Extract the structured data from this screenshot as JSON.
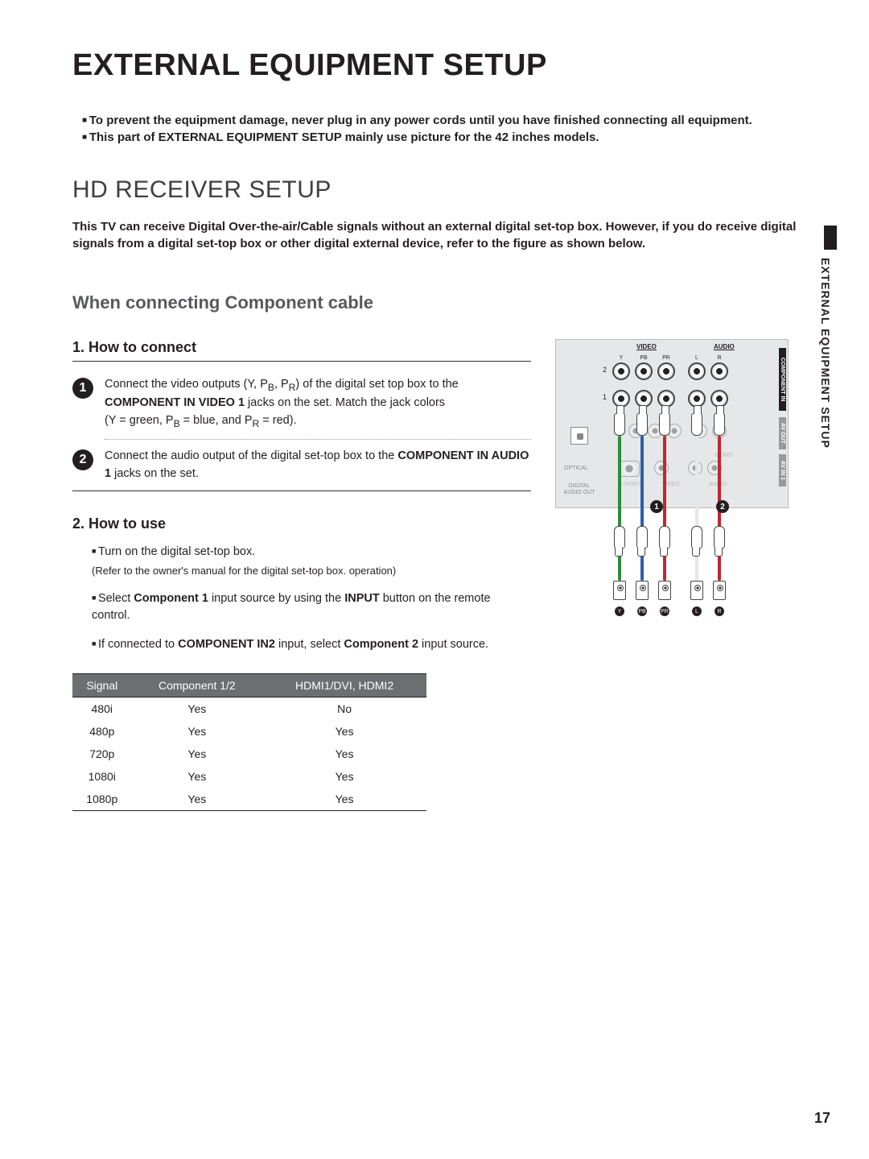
{
  "page": {
    "title": "EXTERNAL EQUIPMENT SETUP",
    "section_title": "HD RECEIVER SETUP",
    "side_text": "EXTERNAL EQUIPMENT SETUP",
    "page_number": "17"
  },
  "warnings": [
    "To prevent the equipment damage, never plug in any power cords until you have finished connecting all equipment.",
    "This part of EXTERNAL EQUIPMENT SETUP mainly use picture for the 42 inches models."
  ],
  "intro": "This TV can receive Digital Over-the-air/Cable signals without an external digital set-top box. However, if you do receive digital signals from a digital set-top box or other digital external device, refer to the figure as shown below.",
  "sub_title": "When connecting Component cable",
  "how_to_connect": {
    "title": "1. How to connect",
    "steps": [
      {
        "num": "1",
        "html": "Connect the video outputs (Y, P<sub>B</sub>, P<sub>R</sub>) of the digital set top box to the <b>COMPONENT IN VIDEO 1</b> jacks on the set. Match the jack colors<br>(Y = green, P<sub>B</sub> = blue, and P<sub>R</sub> = red)."
      },
      {
        "num": "2",
        "html": "Connect the audio output of the digital set-top box to the <b>COMPONENT IN AUDIO 1</b> jacks on the set."
      }
    ]
  },
  "how_to_use": {
    "title": "2. How to use",
    "items": [
      {
        "html": "Turn on the digital set-top box.",
        "refer": "(Refer to the owner's manual for the digital set-top box. operation)"
      },
      {
        "html": "Select <b>Component 1</b> input source by using the <b>INPUT</b> button on the remote control."
      },
      {
        "html": "If connected to <b>COMPONENT IN2</b> input, select <b>Component 2</b> input source."
      }
    ]
  },
  "table": {
    "columns": [
      "Signal",
      "Component 1/2",
      "HDMI1/DVI, HDMI2"
    ],
    "rows": [
      [
        "480i",
        "Yes",
        "No"
      ],
      [
        "480p",
        "Yes",
        "Yes"
      ],
      [
        "720p",
        "Yes",
        "Yes"
      ],
      [
        "1080i",
        "Yes",
        "Yes"
      ],
      [
        "1080p",
        "Yes",
        "Yes"
      ]
    ],
    "header_bg": "#6d6e71",
    "header_color": "#ffffff"
  },
  "diagram": {
    "panel_labels": {
      "video": "VIDEO",
      "audio": "AUDIO"
    },
    "jack_labels_top": [
      "Y",
      "PB",
      "PR",
      "L",
      "R"
    ],
    "row_nums": [
      "2",
      "1"
    ],
    "vlabels": {
      "component": "COMPONENT IN",
      "avout": "AV OUT",
      "avin": "AV IN 1"
    },
    "optical": "OPTICAL",
    "digital_audio": "DIGITAL AUDIO OUT",
    "svideo": "S-VIDEO",
    "video_lbl": "VIDEO",
    "audio_lbl": "AUDIO",
    "mono": "MONO",
    "cable_colors": [
      "#2e8b3d",
      "#2a5fb0",
      "#c1272d",
      "#e6e6e6",
      "#c1272d"
    ],
    "badges": [
      "1",
      "2"
    ],
    "bottom_badges": [
      "Y",
      "PB",
      "PR",
      "L",
      "R"
    ]
  }
}
